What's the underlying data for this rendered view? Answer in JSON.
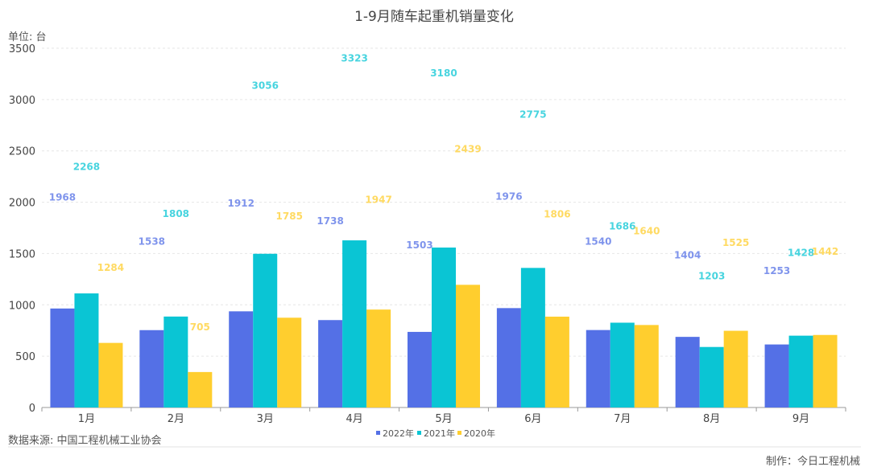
{
  "chart_data": {
    "type": "bar",
    "title": "1-9月随车起重机销量变化",
    "unit_label": "单位: 台",
    "categories": [
      "1月",
      "2月",
      "3月",
      "4月",
      "5月",
      "6月",
      "7月",
      "8月",
      "9月"
    ],
    "ylim": [
      0,
      3500
    ],
    "yticks": [
      0,
      500,
      1000,
      1500,
      2000,
      2500,
      3000,
      3500
    ],
    "grid": true,
    "legend_position": "bottom",
    "series": [
      {
        "name": "2022年",
        "color": "#5470e6",
        "values": [
          1968,
          1538,
          1912,
          1738,
          1503,
          1976,
          1540,
          1404,
          1253
        ]
      },
      {
        "name": "2021年",
        "color": "#0ac5d4",
        "values": [
          2268,
          1808,
          3056,
          3323,
          3180,
          2775,
          1686,
          1203,
          1428
        ]
      },
      {
        "name": "2020年",
        "color": "#ffce2e",
        "values": [
          1284,
          705,
          1785,
          1947,
          2439,
          1806,
          1640,
          1525,
          1442
        ]
      }
    ]
  },
  "footer": {
    "source": "数据来源: 中国工程机械工业协会",
    "credit": "制作：今日工程机械"
  }
}
